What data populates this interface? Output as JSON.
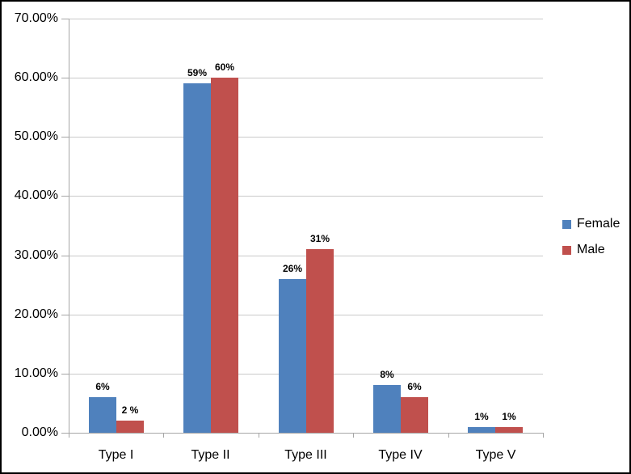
{
  "chart_data": {
    "type": "bar",
    "title": "",
    "xlabel": "",
    "ylabel": "",
    "categories": [
      "Type I",
      "Type II",
      "Type III",
      "Type IV",
      "Type V"
    ],
    "series": [
      {
        "name": "Female",
        "color": "#4F81BD",
        "values": [
          6,
          59,
          26,
          8,
          1
        ],
        "labels": [
          "6%",
          "59%",
          "26%",
          "8%",
          "1%"
        ]
      },
      {
        "name": "Male",
        "color": "#C0504D",
        "values": [
          2,
          60,
          31,
          6,
          1
        ],
        "labels": [
          "2 %",
          "60%",
          "31%",
          "6%",
          "1%"
        ]
      }
    ],
    "ylim": [
      0,
      70
    ],
    "ytick_step": 10,
    "ytick_labels": [
      "0.00%",
      "10.00%",
      "20.00%",
      "30.00%",
      "40.00%",
      "50.00%",
      "60.00%",
      "70.00%"
    ],
    "grid": true,
    "legend_position": "right"
  },
  "styles": {
    "background": "#ffffff",
    "frame_border": "#000000",
    "gridline_color": "#c9c9c9",
    "axis_color": "#a6a6a6",
    "text_color": "#000000"
  }
}
